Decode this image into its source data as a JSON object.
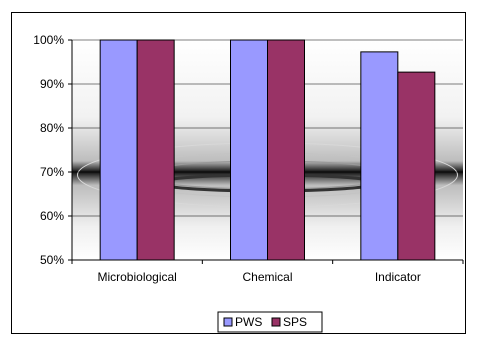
{
  "chart_data": {
    "type": "bar",
    "categories": [
      "Microbiological",
      "Chemical",
      "Indicator"
    ],
    "series": [
      {
        "name": "PWS",
        "values": [
          100,
          100,
          97.3
        ],
        "color": "#9999ff"
      },
      {
        "name": "SPS",
        "values": [
          100,
          100,
          92.7
        ],
        "color": "#993366"
      }
    ],
    "ylim": [
      50,
      100
    ],
    "yticks": [
      "50%",
      "60%",
      "70%",
      "80%",
      "90%",
      "100%"
    ],
    "ytick_values": [
      50,
      60,
      70,
      80,
      90,
      100
    ],
    "title": "",
    "xlabel": "",
    "ylabel": "",
    "grid": true,
    "legend_position": "bottom-center",
    "plot_background": "textured gray wave pattern"
  }
}
